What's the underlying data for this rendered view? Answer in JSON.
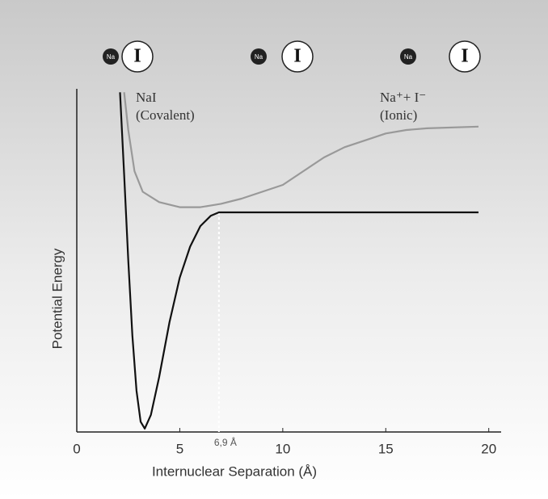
{
  "chart_data": {
    "type": "line",
    "xlabel": "Internuclear Separation (Å)",
    "ylabel": "Potential Energy",
    "xlim": [
      0,
      20.6
    ],
    "ylim": [
      0,
      100
    ],
    "xticks": [
      0,
      5,
      10,
      15,
      20
    ],
    "series": [
      {
        "name": "NaI",
        "subname": "(Covalent)",
        "color": "#111111",
        "x": [
          2.1,
          2.3,
          2.5,
          2.7,
          2.9,
          3.1,
          3.3,
          3.6,
          4.0,
          4.5,
          5.0,
          5.5,
          6.0,
          6.5,
          6.9,
          8,
          10,
          15,
          19.5
        ],
        "values": [
          99,
          75,
          50,
          28,
          12,
          3,
          1,
          5,
          16,
          32,
          45,
          54,
          60,
          63,
          64,
          64,
          64,
          64,
          64
        ]
      },
      {
        "name": "Na⁺+ I⁻",
        "subname": "(Ionic)",
        "color": "#999999",
        "x": [
          2.3,
          2.5,
          2.8,
          3.2,
          4,
          5,
          6,
          7,
          8,
          9,
          10,
          11,
          12,
          13,
          14,
          15,
          16,
          17,
          19.5
        ],
        "values": [
          99,
          88,
          76,
          70,
          67,
          65.5,
          65.5,
          66.5,
          68,
          70,
          72,
          76,
          80,
          83,
          85,
          87,
          88,
          88.5,
          89
        ]
      }
    ],
    "annotations": [
      {
        "text": "6,9 Å",
        "x": 6.9,
        "y": 64
      }
    ],
    "atoms": [
      {
        "small": "Na",
        "large": "I"
      },
      {
        "small": "Na",
        "large": "I"
      },
      {
        "small": "Na",
        "large": "I"
      }
    ]
  }
}
